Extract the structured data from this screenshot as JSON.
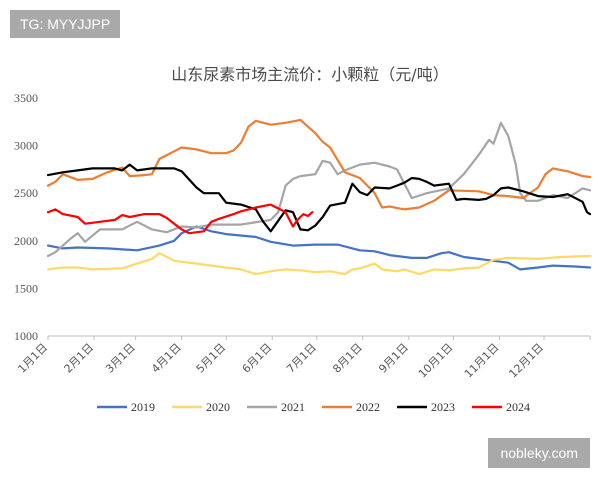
{
  "overlay": {
    "tag": "TG: MYYJJPP",
    "watermark": "nobleky.com"
  },
  "chart_data": {
    "type": "line",
    "title": "山东尿素市场主流价：小颗粒（元/吨）",
    "xlabel": "",
    "ylabel": "",
    "ylim": [
      1000,
      3500
    ],
    "yticks": [
      1000,
      1500,
      2000,
      2500,
      3000,
      3500
    ],
    "xlim": [
      0,
      365
    ],
    "xticks": [
      {
        "label": "1月1日",
        "day": 0
      },
      {
        "label": "2月1日",
        "day": 31
      },
      {
        "label": "3月1日",
        "day": 59
      },
      {
        "label": "4月1日",
        "day": 90
      },
      {
        "label": "5月1日",
        "day": 120
      },
      {
        "label": "6月1日",
        "day": 151
      },
      {
        "label": "7月1日",
        "day": 181
      },
      {
        "label": "8月1日",
        "day": 212
      },
      {
        "label": "9月1日",
        "day": 243
      },
      {
        "label": "10月1日",
        "day": 273
      },
      {
        "label": "11月1日",
        "day": 304
      },
      {
        "label": "12月1日",
        "day": 334
      }
    ],
    "grid": false,
    "legend_position": "bottom",
    "series": [
      {
        "name": "2019",
        "color": "#4472c4",
        "points": [
          [
            0,
            1950
          ],
          [
            10,
            1920
          ],
          [
            20,
            1930
          ],
          [
            40,
            1920
          ],
          [
            60,
            1900
          ],
          [
            75,
            1950
          ],
          [
            85,
            2000
          ],
          [
            90,
            2080
          ],
          [
            100,
            2150
          ],
          [
            110,
            2100
          ],
          [
            120,
            2070
          ],
          [
            140,
            2040
          ],
          [
            150,
            1990
          ],
          [
            165,
            1950
          ],
          [
            180,
            1960
          ],
          [
            195,
            1960
          ],
          [
            210,
            1900
          ],
          [
            220,
            1890
          ],
          [
            230,
            1850
          ],
          [
            245,
            1820
          ],
          [
            255,
            1820
          ],
          [
            265,
            1870
          ],
          [
            270,
            1880
          ],
          [
            280,
            1830
          ],
          [
            290,
            1810
          ],
          [
            300,
            1790
          ],
          [
            310,
            1770
          ],
          [
            318,
            1700
          ],
          [
            330,
            1720
          ],
          [
            340,
            1740
          ],
          [
            355,
            1730
          ],
          [
            365,
            1720
          ]
        ]
      },
      {
        "name": "2020",
        "color": "#ffd966",
        "points": [
          [
            0,
            1700
          ],
          [
            10,
            1720
          ],
          [
            20,
            1720
          ],
          [
            30,
            1700
          ],
          [
            50,
            1710
          ],
          [
            60,
            1760
          ],
          [
            70,
            1810
          ],
          [
            75,
            1870
          ],
          [
            85,
            1790
          ],
          [
            100,
            1760
          ],
          [
            110,
            1740
          ],
          [
            120,
            1720
          ],
          [
            130,
            1700
          ],
          [
            140,
            1650
          ],
          [
            150,
            1680
          ],
          [
            160,
            1700
          ],
          [
            170,
            1690
          ],
          [
            180,
            1670
          ],
          [
            190,
            1680
          ],
          [
            200,
            1650
          ],
          [
            205,
            1700
          ],
          [
            210,
            1710
          ],
          [
            220,
            1760
          ],
          [
            225,
            1700
          ],
          [
            235,
            1680
          ],
          [
            240,
            1700
          ],
          [
            250,
            1650
          ],
          [
            260,
            1700
          ],
          [
            270,
            1690
          ],
          [
            280,
            1710
          ],
          [
            290,
            1720
          ],
          [
            300,
            1800
          ],
          [
            310,
            1820
          ],
          [
            330,
            1810
          ],
          [
            345,
            1830
          ],
          [
            365,
            1840
          ]
        ]
      },
      {
        "name": "2021",
        "color": "#a5a5a5",
        "points": [
          [
            0,
            1840
          ],
          [
            5,
            1880
          ],
          [
            15,
            2020
          ],
          [
            20,
            2080
          ],
          [
            25,
            1990
          ],
          [
            35,
            2120
          ],
          [
            50,
            2120
          ],
          [
            60,
            2200
          ],
          [
            70,
            2120
          ],
          [
            80,
            2090
          ],
          [
            90,
            2150
          ],
          [
            100,
            2140
          ],
          [
            110,
            2170
          ],
          [
            130,
            2170
          ],
          [
            150,
            2220
          ],
          [
            155,
            2300
          ],
          [
            160,
            2580
          ],
          [
            165,
            2650
          ],
          [
            170,
            2680
          ],
          [
            180,
            2700
          ],
          [
            185,
            2840
          ],
          [
            190,
            2820
          ],
          [
            195,
            2700
          ],
          [
            200,
            2740
          ],
          [
            210,
            2800
          ],
          [
            220,
            2820
          ],
          [
            230,
            2780
          ],
          [
            235,
            2750
          ],
          [
            240,
            2600
          ],
          [
            245,
            2450
          ],
          [
            255,
            2500
          ],
          [
            270,
            2550
          ],
          [
            280,
            2700
          ],
          [
            290,
            2900
          ],
          [
            297,
            3060
          ],
          [
            300,
            3020
          ],
          [
            305,
            3240
          ],
          [
            310,
            3100
          ],
          [
            315,
            2800
          ],
          [
            318,
            2500
          ],
          [
            322,
            2420
          ],
          [
            330,
            2420
          ],
          [
            340,
            2480
          ],
          [
            350,
            2450
          ],
          [
            360,
            2550
          ],
          [
            365,
            2530
          ]
        ]
      },
      {
        "name": "2022",
        "color": "#ed7d31",
        "points": [
          [
            0,
            2580
          ],
          [
            5,
            2620
          ],
          [
            10,
            2700
          ],
          [
            20,
            2640
          ],
          [
            30,
            2650
          ],
          [
            40,
            2720
          ],
          [
            50,
            2770
          ],
          [
            55,
            2680
          ],
          [
            65,
            2690
          ],
          [
            70,
            2700
          ],
          [
            75,
            2860
          ],
          [
            80,
            2900
          ],
          [
            85,
            2940
          ],
          [
            90,
            2980
          ],
          [
            100,
            2960
          ],
          [
            110,
            2920
          ],
          [
            120,
            2920
          ],
          [
            125,
            2950
          ],
          [
            130,
            3030
          ],
          [
            135,
            3200
          ],
          [
            140,
            3260
          ],
          [
            150,
            3220
          ],
          [
            160,
            3240
          ],
          [
            170,
            3270
          ],
          [
            180,
            3130
          ],
          [
            185,
            3040
          ],
          [
            190,
            2980
          ],
          [
            195,
            2850
          ],
          [
            200,
            2720
          ],
          [
            210,
            2660
          ],
          [
            215,
            2580
          ],
          [
            220,
            2500
          ],
          [
            225,
            2350
          ],
          [
            230,
            2360
          ],
          [
            240,
            2330
          ],
          [
            250,
            2350
          ],
          [
            260,
            2420
          ],
          [
            270,
            2530
          ],
          [
            290,
            2520
          ],
          [
            300,
            2480
          ],
          [
            310,
            2470
          ],
          [
            320,
            2450
          ],
          [
            330,
            2560
          ],
          [
            335,
            2700
          ],
          [
            340,
            2760
          ],
          [
            350,
            2730
          ],
          [
            360,
            2680
          ],
          [
            365,
            2670
          ]
        ]
      },
      {
        "name": "2023",
        "color": "#000000",
        "points": [
          [
            0,
            2690
          ],
          [
            10,
            2720
          ],
          [
            20,
            2740
          ],
          [
            30,
            2760
          ],
          [
            45,
            2760
          ],
          [
            50,
            2740
          ],
          [
            55,
            2800
          ],
          [
            60,
            2740
          ],
          [
            70,
            2760
          ],
          [
            85,
            2760
          ],
          [
            90,
            2730
          ],
          [
            100,
            2560
          ],
          [
            105,
            2500
          ],
          [
            115,
            2500
          ],
          [
            120,
            2400
          ],
          [
            130,
            2380
          ],
          [
            140,
            2330
          ],
          [
            145,
            2200
          ],
          [
            150,
            2100
          ],
          [
            155,
            2210
          ],
          [
            160,
            2320
          ],
          [
            165,
            2300
          ],
          [
            170,
            2120
          ],
          [
            175,
            2110
          ],
          [
            180,
            2160
          ],
          [
            185,
            2250
          ],
          [
            190,
            2370
          ],
          [
            200,
            2400
          ],
          [
            205,
            2600
          ],
          [
            210,
            2510
          ],
          [
            215,
            2480
          ],
          [
            220,
            2560
          ],
          [
            230,
            2550
          ],
          [
            235,
            2580
          ],
          [
            240,
            2610
          ],
          [
            245,
            2660
          ],
          [
            250,
            2650
          ],
          [
            255,
            2620
          ],
          [
            260,
            2580
          ],
          [
            270,
            2600
          ],
          [
            275,
            2430
          ],
          [
            280,
            2440
          ],
          [
            290,
            2430
          ],
          [
            295,
            2440
          ],
          [
            300,
            2480
          ],
          [
            305,
            2550
          ],
          [
            310,
            2560
          ],
          [
            320,
            2520
          ],
          [
            330,
            2470
          ],
          [
            340,
            2460
          ],
          [
            350,
            2490
          ],
          [
            360,
            2410
          ],
          [
            363,
            2300
          ],
          [
            365,
            2280
          ]
        ]
      },
      {
        "name": "2024",
        "color": "#ff0000",
        "points": [
          [
            0,
            2300
          ],
          [
            5,
            2330
          ],
          [
            10,
            2280
          ],
          [
            20,
            2250
          ],
          [
            25,
            2180
          ],
          [
            35,
            2200
          ],
          [
            45,
            2220
          ],
          [
            50,
            2270
          ],
          [
            55,
            2250
          ],
          [
            65,
            2280
          ],
          [
            75,
            2280
          ],
          [
            80,
            2240
          ],
          [
            85,
            2180
          ],
          [
            90,
            2120
          ],
          [
            95,
            2080
          ],
          [
            105,
            2100
          ],
          [
            110,
            2200
          ],
          [
            115,
            2230
          ],
          [
            125,
            2280
          ],
          [
            130,
            2310
          ],
          [
            140,
            2350
          ],
          [
            150,
            2380
          ],
          [
            155,
            2340
          ],
          [
            160,
            2300
          ],
          [
            163,
            2210
          ],
          [
            165,
            2150
          ],
          [
            168,
            2220
          ],
          [
            172,
            2280
          ],
          [
            175,
            2260
          ],
          [
            178,
            2300
          ]
        ]
      }
    ]
  }
}
